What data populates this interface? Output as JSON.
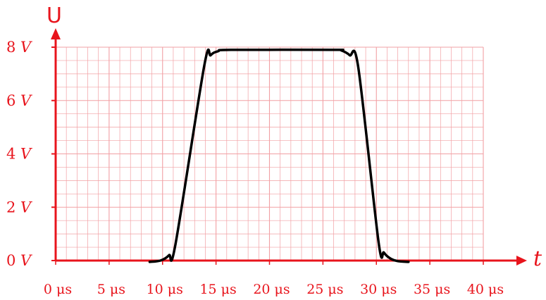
{
  "chart_data": {
    "type": "line",
    "xlabel": "t",
    "ylabel": "U",
    "x_ticks": [
      {
        "value": 0,
        "label": "0 μs"
      },
      {
        "value": 5,
        "label": "5 μs"
      },
      {
        "value": 10,
        "label": "10 μs"
      },
      {
        "value": 15,
        "label": "15 μs"
      },
      {
        "value": 20,
        "label": "20 μs"
      },
      {
        "value": 25,
        "label": "25 μs"
      },
      {
        "value": 30,
        "label": "30 μs"
      },
      {
        "value": 35,
        "label": "35 μs"
      },
      {
        "value": 40,
        "label": "40 μs"
      }
    ],
    "y_ticks": [
      {
        "value": 0,
        "label": "0 V"
      },
      {
        "value": 2,
        "label": "2 V"
      },
      {
        "value": 4,
        "label": "4 V"
      },
      {
        "value": 6,
        "label": "6 V"
      },
      {
        "value": 8,
        "label": "8 V"
      }
    ],
    "xlim": [
      0,
      40
    ],
    "ylim": [
      0,
      8
    ],
    "grid": true,
    "series": [
      {
        "points": [
          [
            8.8,
            -0.05
          ],
          [
            9.8,
            0.0
          ],
          [
            10.6,
            0.2
          ],
          [
            11.2,
            0.6
          ],
          [
            13.9,
            7.3
          ],
          [
            14.5,
            7.7
          ],
          [
            15.2,
            7.85
          ],
          [
            16.4,
            7.9
          ],
          [
            26.0,
            7.9
          ],
          [
            26.7,
            7.88
          ],
          [
            27.5,
            7.7
          ],
          [
            28.3,
            7.25
          ],
          [
            30.2,
            0.7
          ],
          [
            30.7,
            0.3
          ],
          [
            31.3,
            0.08
          ],
          [
            32.0,
            -0.02
          ],
          [
            33.0,
            -0.05
          ]
        ]
      }
    ],
    "colors": {
      "axis": "#e8141c",
      "grid": "#f2a0a4",
      "curve": "#000000"
    }
  }
}
